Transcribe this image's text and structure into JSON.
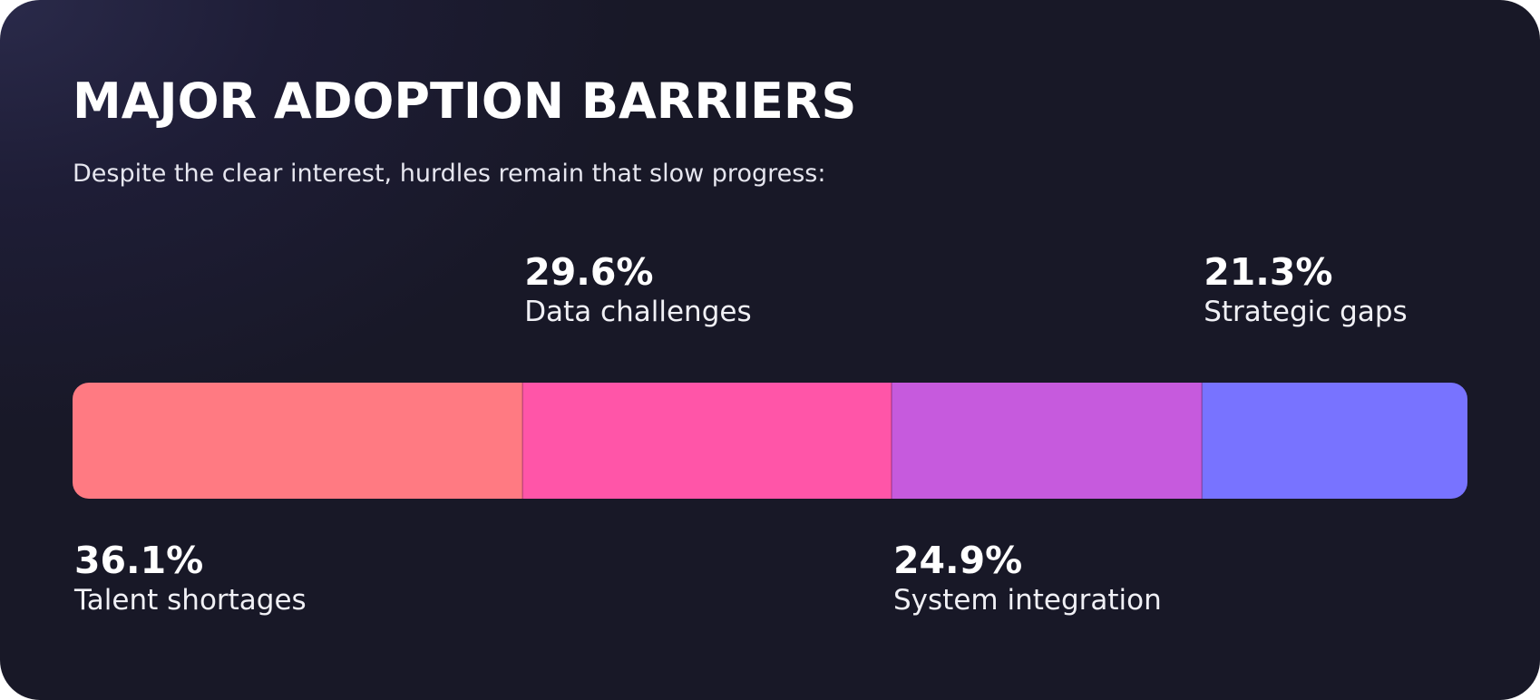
{
  "title": "MAJOR ADOPTION BARRIERS",
  "subtitle": "Despite the clear interest, hurdles remain that slow progress:",
  "chart_data": {
    "type": "bar",
    "orientation": "horizontal-stacked",
    "categories": [
      "Talent shortages",
      "Data challenges",
      "System integration",
      "Strategic gaps"
    ],
    "values": [
      36.1,
      29.6,
      24.9,
      21.3
    ],
    "value_labels": [
      "36.1%",
      "29.6%",
      "24.9%",
      "21.3%"
    ],
    "label_positions": [
      "below",
      "above",
      "below",
      "above"
    ],
    "colors": [
      "#ff7a82",
      "#ff55a8",
      "#c65add",
      "#7873ff"
    ],
    "title": "MAJOR ADOPTION BARRIERS",
    "subtitle": "Despite the clear interest, hurdles remain that slow progress:",
    "xlabel": "",
    "ylabel": "",
    "grid": false,
    "legend": "none"
  },
  "colors": {
    "background": "#181827",
    "text": "#ffffff"
  }
}
